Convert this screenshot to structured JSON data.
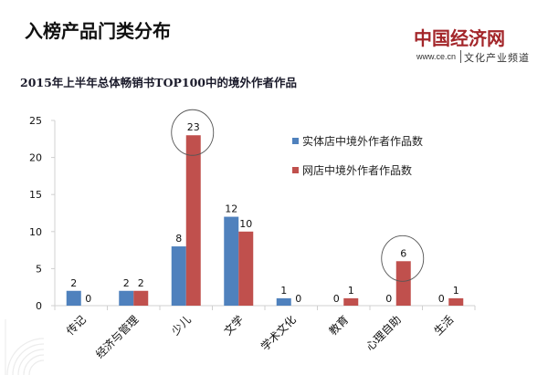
{
  "header": {
    "title": "入榜产品门类分布"
  },
  "logo": {
    "name": "中国经济网",
    "url": "www.ce.cn",
    "channel": "文化产业频道"
  },
  "colors": {
    "series_physical": "#4f81bd",
    "series_online": "#c0504d",
    "axis": "#d0d0d0",
    "logo_red": "#a3262a"
  },
  "chart_data": {
    "type": "bar",
    "title": "2015年上半年总体畅销书TOP100中的境外作者作品",
    "xlabel": "",
    "ylabel": "",
    "ylim": [
      0,
      25
    ],
    "yticks": [
      0,
      5,
      10,
      15,
      20,
      25
    ],
    "grid": false,
    "legend_position": "right",
    "categories": [
      "传记",
      "经济与管理",
      "少儿",
      "文学",
      "学术文化",
      "教育",
      "心理自助",
      "生活"
    ],
    "series": [
      {
        "name": "实体店中境外作者作品数",
        "color": "#4f81bd",
        "values": [
          2,
          2,
          8,
          12,
          1,
          0,
          0,
          0
        ]
      },
      {
        "name": "网店中境外作者作品数",
        "color": "#c0504d",
        "values": [
          0,
          2,
          23,
          10,
          0,
          1,
          6,
          1
        ]
      }
    ],
    "annotations": [
      {
        "type": "circle",
        "category": "少儿",
        "series": "网店中境外作者作品数",
        "value": 23
      },
      {
        "type": "circle",
        "category": "心理自助",
        "series": "网店中境外作者作品数",
        "value": 6
      }
    ]
  }
}
